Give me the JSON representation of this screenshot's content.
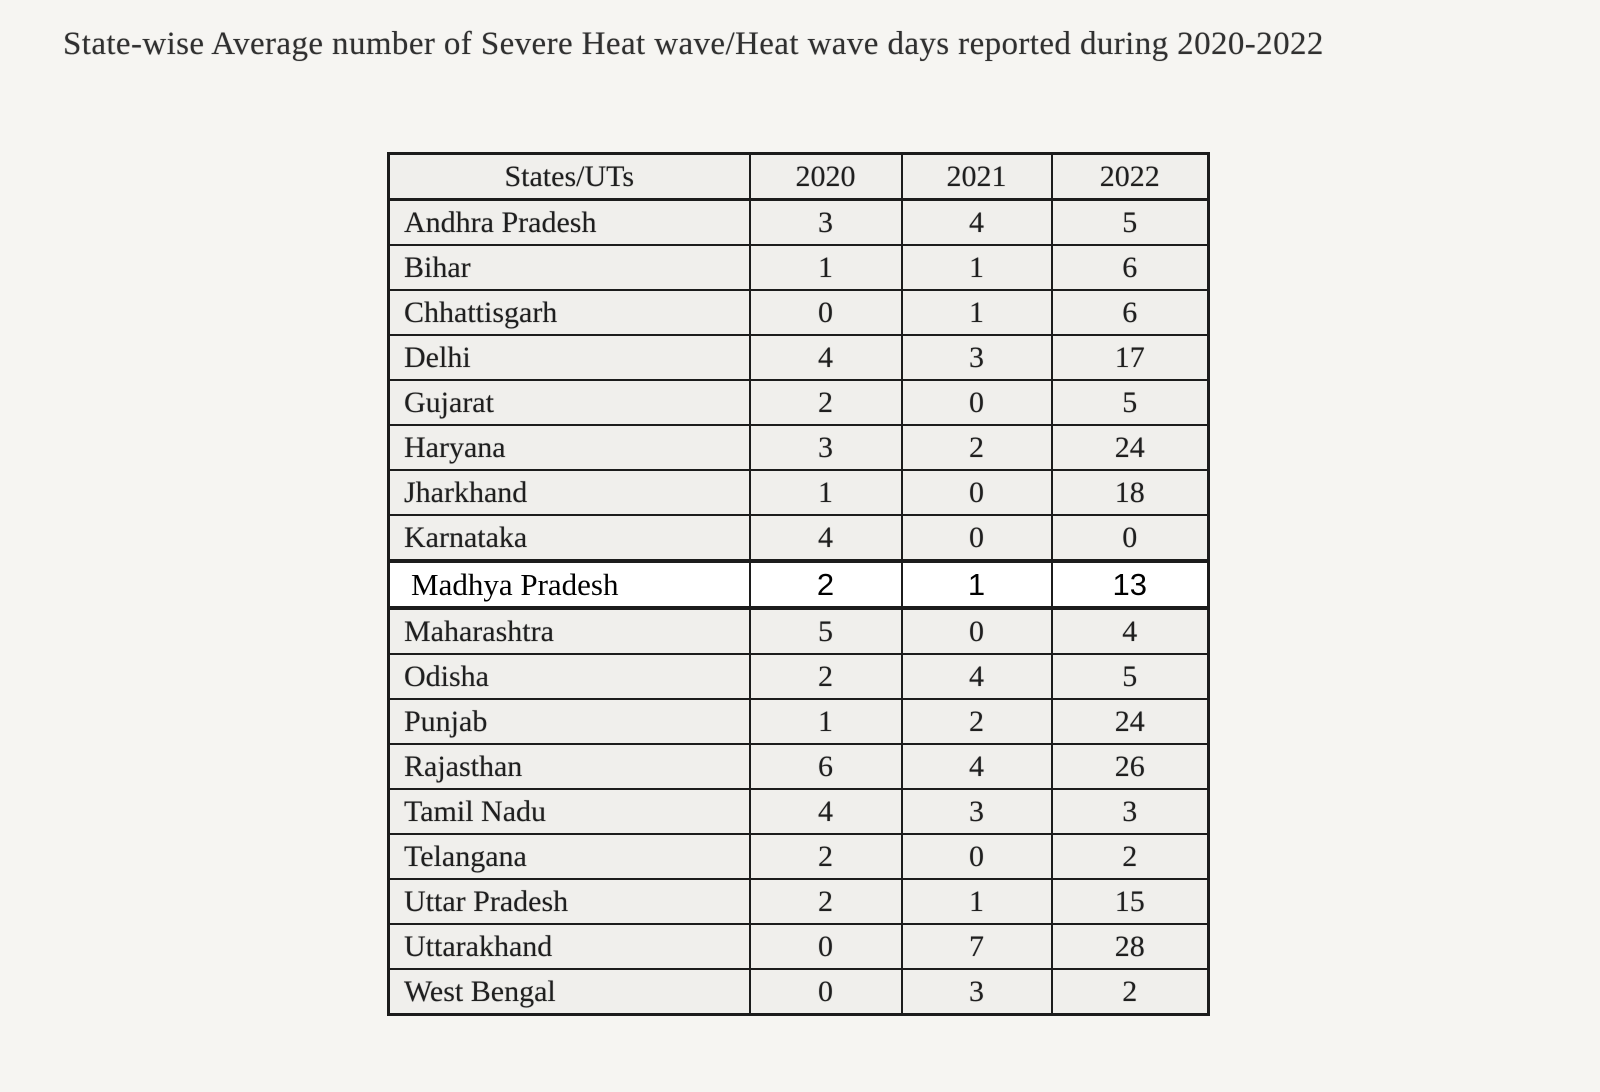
{
  "title": "State-wise Average number of Severe Heat wave/Heat wave days reported during 2020-2022",
  "table": {
    "columns": [
      "States/UTs",
      "2020",
      "2021",
      "2022"
    ],
    "rows": [
      {
        "state": "Andhra Pradesh",
        "values": [
          3,
          4,
          5
        ],
        "highlight": false
      },
      {
        "state": "Bihar",
        "values": [
          1,
          1,
          6
        ],
        "highlight": false
      },
      {
        "state": "Chhattisgarh",
        "values": [
          0,
          1,
          6
        ],
        "highlight": false
      },
      {
        "state": "Delhi",
        "values": [
          4,
          3,
          17
        ],
        "highlight": false
      },
      {
        "state": "Gujarat",
        "values": [
          2,
          0,
          5
        ],
        "highlight": false
      },
      {
        "state": "Haryana",
        "values": [
          3,
          2,
          24
        ],
        "highlight": false
      },
      {
        "state": "Jharkhand",
        "values": [
          1,
          0,
          18
        ],
        "highlight": false
      },
      {
        "state": "Karnataka",
        "values": [
          4,
          0,
          0
        ],
        "highlight": false
      },
      {
        "state": "Madhya Pradesh",
        "values": [
          2,
          1,
          13
        ],
        "highlight": true
      },
      {
        "state": "Maharashtra",
        "values": [
          5,
          0,
          4
        ],
        "highlight": false
      },
      {
        "state": "Odisha",
        "values": [
          2,
          4,
          5
        ],
        "highlight": false
      },
      {
        "state": "Punjab",
        "values": [
          1,
          2,
          24
        ],
        "highlight": false
      },
      {
        "state": "Rajasthan",
        "values": [
          6,
          4,
          26
        ],
        "highlight": false
      },
      {
        "state": "Tamil Nadu",
        "values": [
          4,
          3,
          3
        ],
        "highlight": false
      },
      {
        "state": "Telangana",
        "values": [
          2,
          0,
          2
        ],
        "highlight": false
      },
      {
        "state": "Uttar Pradesh",
        "values": [
          2,
          1,
          15
        ],
        "highlight": false
      },
      {
        "state": "Uttarakhand",
        "values": [
          0,
          7,
          28
        ],
        "highlight": false
      },
      {
        "state": "West Bengal",
        "values": [
          0,
          3,
          2
        ],
        "highlight": false
      }
    ]
  },
  "colors": {
    "page_background": "#f6f5f2",
    "cell_background": "#f0efec",
    "highlight_row_background": "#ffffff",
    "border": "#1c1c1c",
    "text": "#1f1f1f"
  }
}
